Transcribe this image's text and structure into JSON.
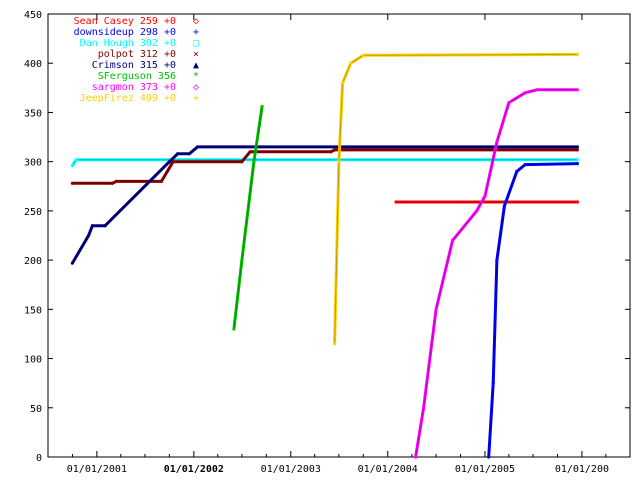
{
  "chart_data": {
    "type": "line",
    "title": "",
    "xlabel": "",
    "ylabel": "",
    "xlim": [
      "2000-07-01",
      "2006-07-01"
    ],
    "ylim": [
      0,
      450
    ],
    "grid": false,
    "legend_position": "top-left",
    "y_ticks": [
      0,
      50,
      100,
      150,
      200,
      250,
      300,
      350,
      400,
      450
    ],
    "x_ticks": [
      {
        "date": "2001-01-01",
        "label": "01/01/2001",
        "bold": false
      },
      {
        "date": "2002-01-01",
        "label": "01/01/2002",
        "bold": true
      },
      {
        "date": "2003-01-01",
        "label": "01/01/2003",
        "bold": false
      },
      {
        "date": "2004-01-01",
        "label": "01/01/2004",
        "bold": false
      },
      {
        "date": "2005-01-01",
        "label": "01/01/2005",
        "bold": false
      },
      {
        "date": "2006-01-01",
        "label": "01/01/200",
        "bold": false
      }
    ],
    "series": [
      {
        "name": "Sean Casey 259 +0",
        "color": "#ff0000",
        "marker": "◇",
        "points": [
          [
            "2004-02-01",
            259
          ],
          [
            "2005-12-15",
            259
          ]
        ]
      },
      {
        "name": "downsideup 298 +0",
        "color": "#0000ff",
        "marker": "+",
        "points": [
          [
            "2005-01-15",
            0
          ],
          [
            "2005-02-01",
            75
          ],
          [
            "2005-02-15",
            200
          ],
          [
            "2005-03-15",
            255
          ],
          [
            "2005-05-01",
            290
          ],
          [
            "2005-06-01",
            297
          ],
          [
            "2005-12-15",
            298
          ]
        ]
      },
      {
        "name": "Dan Hough 302 +0",
        "color": "#00ffff",
        "marker": "□",
        "points": [
          [
            "2000-10-01",
            296
          ],
          [
            "2000-10-15",
            302
          ],
          [
            "2005-12-15",
            302
          ]
        ]
      },
      {
        "name": "polpot 312 +0",
        "color": "#8b0000",
        "marker": "×",
        "points": [
          [
            "2000-10-01",
            278
          ],
          [
            "2001-03-01",
            278
          ],
          [
            "2001-03-15",
            280
          ],
          [
            "2001-09-01",
            280
          ],
          [
            "2001-10-15",
            300
          ],
          [
            "2002-07-01",
            300
          ],
          [
            "2002-08-01",
            310
          ],
          [
            "2003-06-01",
            310
          ],
          [
            "2003-06-15",
            312
          ],
          [
            "2005-12-15",
            312
          ]
        ]
      },
      {
        "name": "Crimson 315 +0",
        "color": "#000080",
        "marker": "▲",
        "points": [
          [
            "2000-10-01",
            197
          ],
          [
            "2000-12-01",
            225
          ],
          [
            "2000-12-15",
            235
          ],
          [
            "2001-02-01",
            235
          ],
          [
            "2001-10-01",
            300
          ],
          [
            "2001-11-01",
            308
          ],
          [
            "2001-12-15",
            308
          ],
          [
            "2002-01-15",
            315
          ],
          [
            "2005-12-15",
            315
          ]
        ]
      },
      {
        "name": "SFerguson 356",
        "color": "#00c000",
        "marker": "*",
        "points": [
          [
            "2002-06-01",
            130
          ],
          [
            "2002-07-01",
            200
          ],
          [
            "2002-08-15",
            300
          ],
          [
            "2002-09-15",
            356
          ]
        ]
      },
      {
        "name": "sargmon 373 +0",
        "color": "#ff00ff",
        "marker": "◇",
        "points": [
          [
            "2004-04-15",
            0
          ],
          [
            "2004-05-15",
            50
          ],
          [
            "2004-07-01",
            150
          ],
          [
            "2004-09-01",
            220
          ],
          [
            "2004-12-01",
            250
          ],
          [
            "2005-01-01",
            265
          ],
          [
            "2005-02-15",
            320
          ],
          [
            "2005-04-01",
            360
          ],
          [
            "2005-06-01",
            370
          ],
          [
            "2005-07-15",
            373
          ],
          [
            "2005-12-15",
            373
          ]
        ]
      },
      {
        "name": "JeepFirez 409 +0",
        "color": "#ffd000",
        "marker": "+",
        "points": [
          [
            "2003-06-15",
            115
          ],
          [
            "2003-07-01",
            300
          ],
          [
            "2003-07-15",
            380
          ],
          [
            "2003-08-15",
            400
          ],
          [
            "2003-10-01",
            408
          ],
          [
            "2005-12-15",
            409
          ]
        ]
      }
    ]
  }
}
